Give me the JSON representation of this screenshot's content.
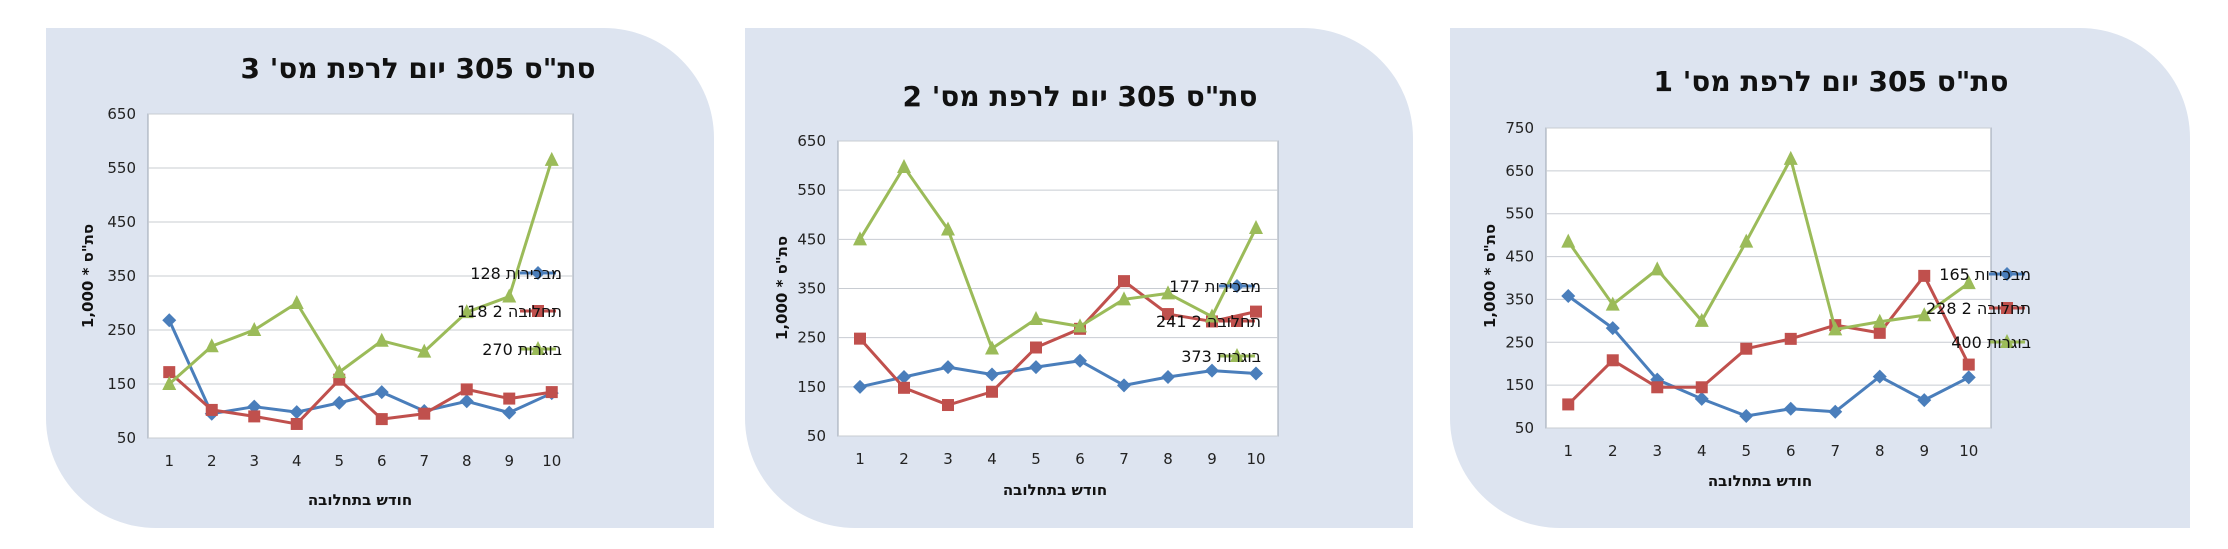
{
  "chart_data": [
    {
      "type": "line",
      "title": "סת\"ס 305 יום לרפת  מס' 3",
      "xlabel": "חודש בתחלובה",
      "ylabel": "סת\"ס * 1,000",
      "categories": [
        1,
        2,
        3,
        4,
        5,
        6,
        7,
        8,
        9,
        10
      ],
      "yticks": [
        50,
        150,
        250,
        350,
        450,
        550,
        650
      ],
      "ylim": [
        50,
        650
      ],
      "grid": true,
      "legend": "right",
      "series": [
        {
          "name": "מבכירות 128",
          "color": "#4a7ebb",
          "marker": "diamond",
          "values": [
            268,
            95,
            108,
            98,
            115,
            135,
            100,
            118,
            97,
            133
          ]
        },
        {
          "name": "תחלובה 2 118",
          "color": "#c0504d",
          "marker": "square",
          "values": [
            172,
            102,
            90,
            76,
            158,
            85,
            95,
            140,
            123,
            135
          ]
        },
        {
          "name": "בוגרות 270",
          "color": "#9bbb59",
          "marker": "triangle",
          "values": [
            150,
            220,
            250,
            300,
            172,
            230,
            210,
            283,
            312,
            565
          ]
        }
      ]
    },
    {
      "type": "line",
      "title": "סת\"ס 305 יום לרפת  מס' 2",
      "xlabel": "חודש בתחלובה",
      "ylabel": "סת\"ס * 1,000",
      "categories": [
        1,
        2,
        3,
        4,
        5,
        6,
        7,
        8,
        9,
        10
      ],
      "yticks": [
        50,
        150,
        250,
        350,
        450,
        550,
        650
      ],
      "ylim": [
        50,
        650
      ],
      "grid": true,
      "legend": "right",
      "series": [
        {
          "name": "מבכירות 177",
          "color": "#4a7ebb",
          "marker": "diamond",
          "values": [
            150,
            170,
            190,
            175,
            190,
            203,
            153,
            170,
            183,
            177
          ]
        },
        {
          "name": "תחלובה 2 241",
          "color": "#c0504d",
          "marker": "square",
          "values": [
            248,
            148,
            113,
            140,
            230,
            268,
            365,
            298,
            283,
            303
          ]
        },
        {
          "name": "בוגרות 373",
          "color": "#9bbb59",
          "marker": "triangle",
          "values": [
            450,
            597,
            470,
            228,
            288,
            273,
            328,
            340,
            293,
            473
          ]
        }
      ]
    },
    {
      "type": "line",
      "title": "סת\"ס 305 יום לרפת   מס' 1",
      "xlabel": "חודש בתחלובה",
      "ylabel": "סת\"ס * 1,000",
      "categories": [
        1,
        2,
        3,
        4,
        5,
        6,
        7,
        8,
        9,
        10
      ],
      "yticks": [
        50,
        150,
        250,
        350,
        450,
        550,
        650,
        750
      ],
      "ylim": [
        50,
        750
      ],
      "grid": true,
      "legend": "right",
      "series": [
        {
          "name": "מבכירות 165",
          "color": "#4a7ebb",
          "marker": "diamond",
          "values": [
            358,
            283,
            163,
            118,
            78,
            95,
            88,
            170,
            115,
            168
          ]
        },
        {
          "name": "תחלובה 2 228",
          "color": "#c0504d",
          "marker": "square",
          "values": [
            105,
            208,
            145,
            145,
            235,
            258,
            290,
            272,
            405,
            198
          ]
        },
        {
          "name": "בוגרות 400",
          "color": "#9bbb59",
          "marker": "triangle",
          "values": [
            485,
            338,
            420,
            300,
            485,
            678,
            280,
            298,
            313,
            388
          ]
        }
      ]
    }
  ]
}
